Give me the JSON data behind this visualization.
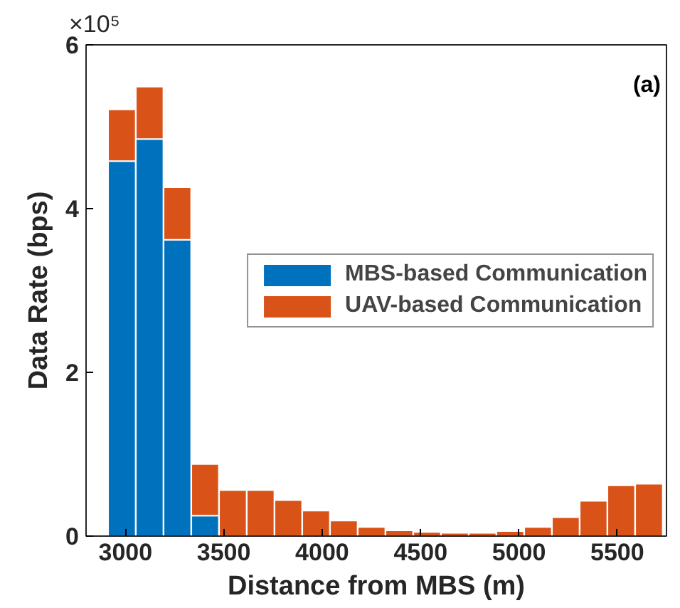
{
  "chart_data": {
    "type": "bar",
    "stacked": true,
    "xlabel": "Distance from MBS (m)",
    "ylabel": "Data Rate (bps)",
    "annotations": [
      "×10⁵",
      "(a)"
    ],
    "x": [
      2982,
      3123,
      3264,
      3405,
      3546,
      3687,
      3828,
      3969,
      4110,
      4251,
      4392,
      4533,
      4674,
      4815,
      4956,
      5097,
      5238,
      5379,
      5520,
      5661
    ],
    "series": [
      {
        "name": "MBS-based Communication",
        "color": "#0072bd",
        "values": [
          4.58,
          4.85,
          3.62,
          0.25,
          0,
          0,
          0,
          0,
          0,
          0,
          0,
          0,
          0,
          0,
          0,
          0,
          0,
          0,
          0,
          0
        ]
      },
      {
        "name": "UAV-based Communication",
        "color": "#d95319",
        "values": [
          0.63,
          0.64,
          0.64,
          0.63,
          0.56,
          0.56,
          0.44,
          0.31,
          0.19,
          0.11,
          0.07,
          0.05,
          0.04,
          0.04,
          0.06,
          0.11,
          0.23,
          0.43,
          0.62,
          0.64
        ]
      }
    ],
    "xlim": [
      2800,
      5750
    ],
    "ylim": [
      0,
      6
    ],
    "xticks": [
      3000,
      3500,
      4000,
      4500,
      5000,
      5500
    ],
    "yticks": [
      0,
      2,
      4,
      6
    ],
    "grid": false,
    "legend": "right"
  }
}
